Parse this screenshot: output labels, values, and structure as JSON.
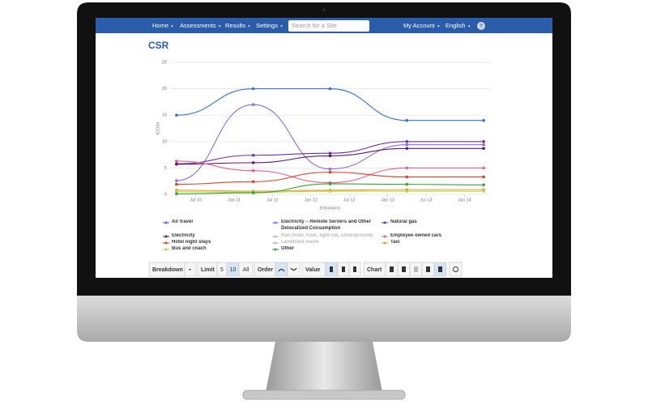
{
  "nav": {
    "items": [
      "Home",
      "Assessments",
      "Results",
      "Settings"
    ],
    "search_placeholder": "Search for a Site",
    "account": "My Account",
    "language": "English",
    "help": "?"
  },
  "page_title": "CSR",
  "chart_data": {
    "type": "line",
    "y_label": "tCO2e",
    "x_label": "Emissions",
    "x": [
      "2010-04",
      "2011-04",
      "2012-04",
      "2013-04",
      "2014-04"
    ],
    "xlim": [
      "2010-03",
      "2014-05"
    ],
    "xticks": [
      {
        "value": "2010-07",
        "label": "Jul 10"
      },
      {
        "value": "2011-01",
        "label": "Jan 11"
      },
      {
        "value": "2011-07",
        "label": "Jul 11"
      },
      {
        "value": "2012-01",
        "label": "Jan 12"
      },
      {
        "value": "2012-07",
        "label": "Jul 12"
      },
      {
        "value": "2013-01",
        "label": "Jan 13"
      },
      {
        "value": "2013-07",
        "label": "Jul 13"
      },
      {
        "value": "2014-01",
        "label": "Jan 14"
      }
    ],
    "ylim": [
      0,
      25
    ],
    "yticks": [
      0,
      5,
      10,
      15,
      20,
      25
    ],
    "grid": true,
    "series": [
      {
        "name": "Air travel",
        "color": "#3b73c4",
        "values": [
          15,
          20,
          20,
          14,
          14
        ]
      },
      {
        "name": "Electricity – Remote Servers and Other Delocalized Consumption",
        "color": "#8a6de0",
        "values": [
          2.6,
          17,
          4.8,
          9.4,
          9.4
        ]
      },
      {
        "name": "Natural gas",
        "color": "#6b2fa8",
        "values": [
          5.8,
          7.4,
          7.8,
          10,
          10
        ]
      },
      {
        "name": "Electricity",
        "color": "#5a1a6e",
        "values": [
          5.7,
          6,
          7.3,
          8.7,
          8.7
        ]
      },
      {
        "name": "Rail (train, tram, light rail, underground)",
        "color": "#bbbbbb",
        "visible": false
      },
      {
        "name": "Employee owned cars",
        "color": "#e8608a",
        "values": [
          6.3,
          4.5,
          2.2,
          5,
          5
        ]
      },
      {
        "name": "Hotel night stays",
        "color": "#d8412e",
        "values": [
          1.9,
          2.4,
          4.2,
          3.3,
          3.3
        ]
      },
      {
        "name": "Landfilled waste",
        "color": "#bbbbbb",
        "visible": false
      },
      {
        "name": "Taxi",
        "color": "#e8a020",
        "values": [
          0.8,
          0.6,
          0.8,
          0.9,
          0.9
        ]
      },
      {
        "name": "Bus and coach",
        "color": "#a8d84a",
        "values": [
          0.5,
          0.4,
          0.6,
          0.6,
          0.6
        ]
      },
      {
        "name": "Other",
        "color": "#3aa03a",
        "values": [
          0.1,
          0.3,
          2,
          1.9,
          1.8
        ]
      }
    ]
  },
  "toolbar": {
    "breakdown": "Breakdown",
    "limit": "Limit",
    "limit_options": [
      "5",
      "10",
      "All"
    ],
    "order": "Order",
    "value": "Value",
    "chart": "Chart"
  }
}
